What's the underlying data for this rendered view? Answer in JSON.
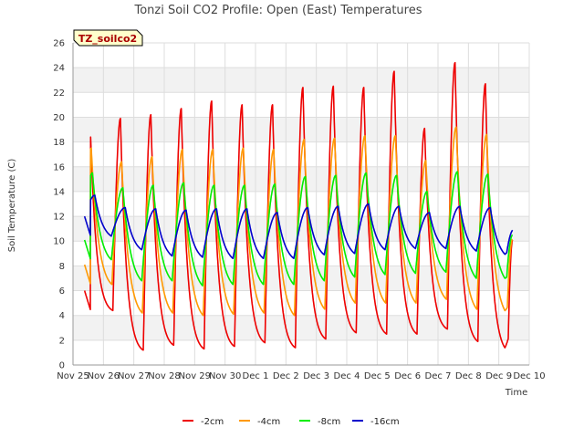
{
  "chart_data": {
    "type": "line",
    "title": "Tonzi Soil CO2 Profile: Open (East) Temperatures",
    "xlabel": "Time",
    "ylabel": "Soil Temperature (C)",
    "station_badge": "TZ_soilco2",
    "xlim": [
      0,
      15
    ],
    "ylim": [
      0,
      26
    ],
    "x_ticks": [
      {
        "x": 0,
        "label": "Nov 25"
      },
      {
        "x": 1,
        "label": "Nov 26"
      },
      {
        "x": 2,
        "label": "Nov 27"
      },
      {
        "x": 3,
        "label": "Nov 28"
      },
      {
        "x": 4,
        "label": "Nov 29"
      },
      {
        "x": 5,
        "label": "Nov 30"
      },
      {
        "x": 6,
        "label": "Dec 1"
      },
      {
        "x": 7,
        "label": "Dec 2"
      },
      {
        "x": 8,
        "label": "Dec 3"
      },
      {
        "x": 9,
        "label": "Dec 4"
      },
      {
        "x": 10,
        "label": "Dec 5"
      },
      {
        "x": 11,
        "label": "Dec 6"
      },
      {
        "x": 12,
        "label": "Dec 7"
      },
      {
        "x": 13,
        "label": "Dec 8"
      },
      {
        "x": 14,
        "label": "Dec 9"
      },
      {
        "x": 15,
        "label": "Dec 10"
      }
    ],
    "y_ticks": [
      0,
      2,
      4,
      6,
      8,
      10,
      12,
      14,
      16,
      18,
      20,
      22,
      24,
      26
    ],
    "grid": true,
    "legend_position": "bottom-center",
    "series": [
      {
        "name": "-2cm",
        "color": "#ee0000",
        "daily_max": [
          19.9,
          19.9,
          20.2,
          20.7,
          21.3,
          21.0,
          21.0,
          22.4,
          22.5,
          22.4,
          23.7,
          19.1,
          24.4,
          22.7
        ],
        "daily_min": [
          4.4,
          1.2,
          1.6,
          1.3,
          1.5,
          1.8,
          1.4,
          2.1,
          2.6,
          2.5,
          2.5,
          2.9,
          1.9,
          1.1
        ],
        "end_value": 5.0
      },
      {
        "name": "-4cm",
        "color": "#ff9900",
        "daily_max": [
          17.5,
          16.4,
          16.8,
          17.4,
          17.4,
          17.5,
          17.4,
          18.2,
          18.3,
          18.5,
          18.5,
          16.5,
          19.2,
          18.6
        ],
        "daily_min": [
          6.5,
          4.2,
          4.2,
          4.0,
          4.1,
          4.2,
          4.0,
          4.5,
          5.0,
          5.0,
          5.0,
          5.3,
          4.5,
          4.1
        ],
        "end_value": 7.0
      },
      {
        "name": "-8cm",
        "color": "#00ee00",
        "daily_max": [
          15.5,
          14.3,
          14.5,
          14.7,
          14.5,
          14.5,
          14.6,
          15.2,
          15.3,
          15.5,
          15.3,
          14.0,
          15.6,
          15.4
        ],
        "daily_min": [
          8.5,
          6.8,
          6.8,
          6.4,
          6.5,
          6.5,
          6.5,
          6.8,
          7.1,
          7.3,
          7.4,
          7.5,
          7.0,
          6.8
        ],
        "end_value": 8.9
      },
      {
        "name": "-16cm",
        "color": "#0000cc",
        "daily_max": [
          13.7,
          12.7,
          12.6,
          12.5,
          12.6,
          12.6,
          12.3,
          12.7,
          12.8,
          13.0,
          12.8,
          12.3,
          12.8,
          12.7
        ],
        "daily_min": [
          10.4,
          9.3,
          8.8,
          8.7,
          8.6,
          8.6,
          8.6,
          8.9,
          9.0,
          9.3,
          9.4,
          9.4,
          9.2,
          8.8
        ],
        "end_value": 10.7
      }
    ]
  }
}
